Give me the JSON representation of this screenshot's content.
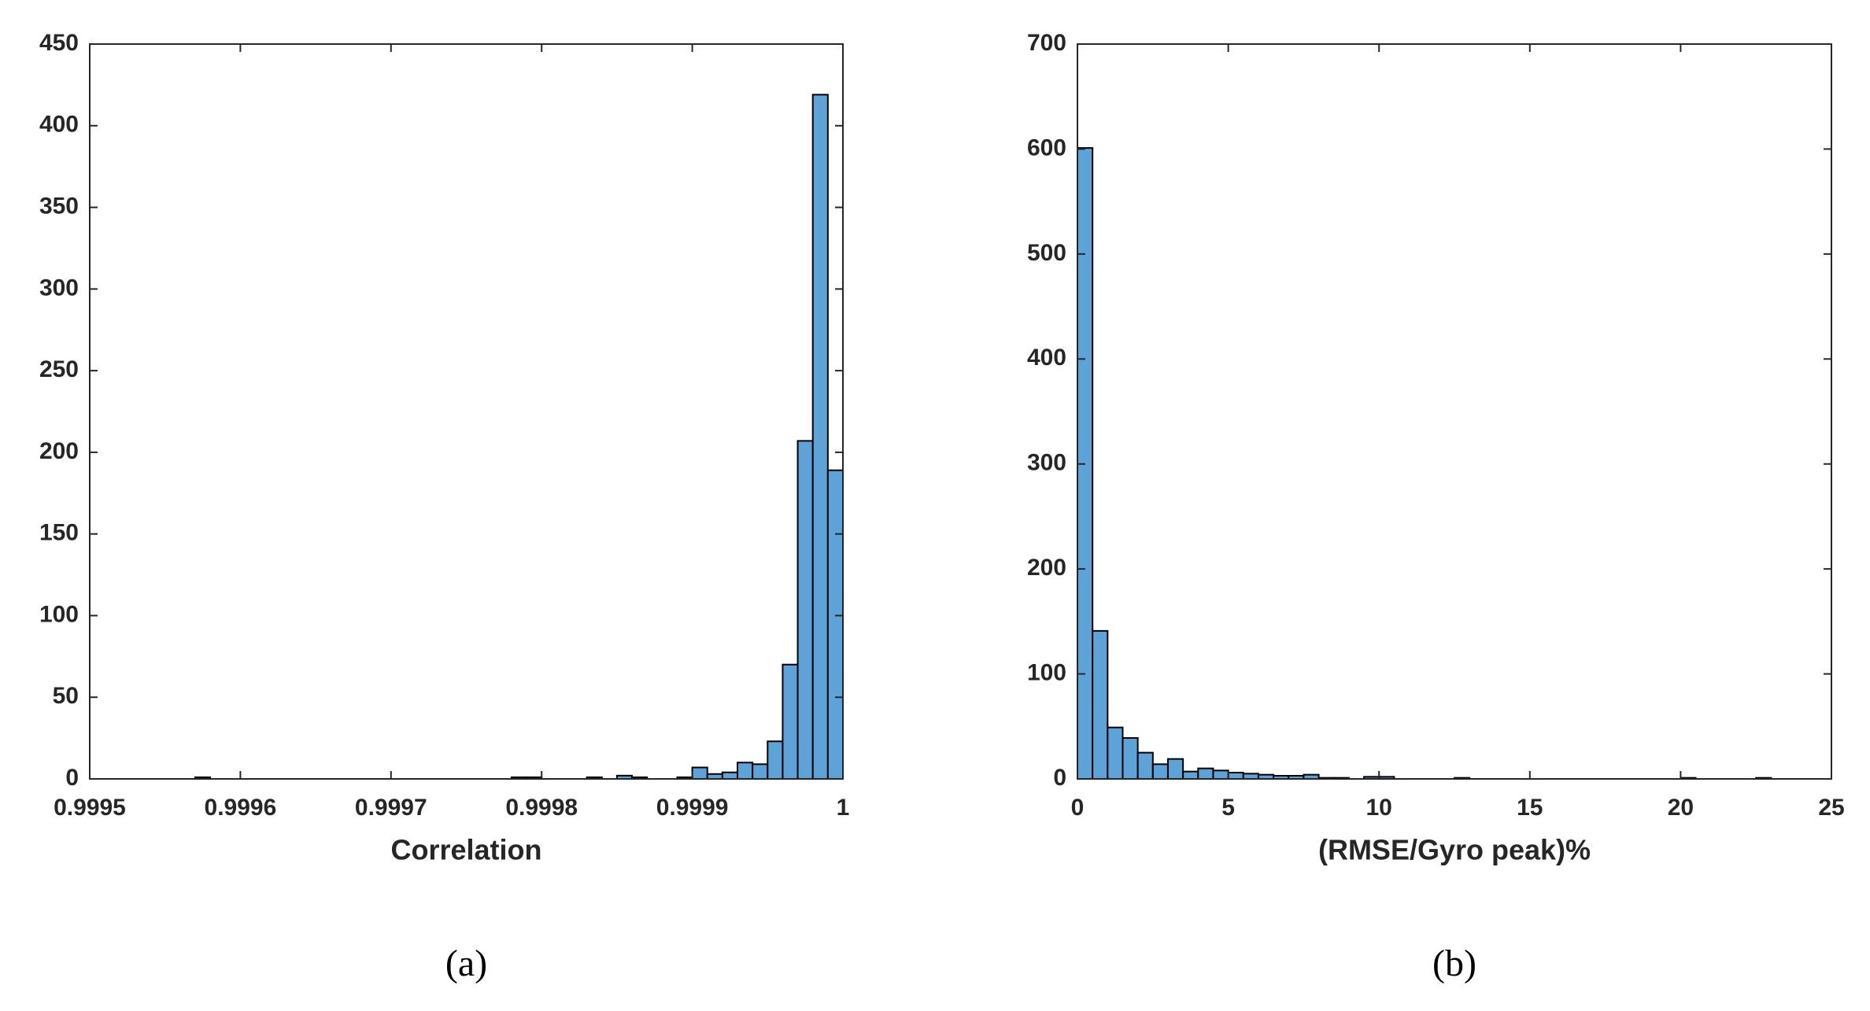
{
  "chart_data": [
    {
      "type": "histogram",
      "x_label": "Correlation",
      "caption": "(a)",
      "color": "#5ea3d8",
      "edgecolor": "#000000",
      "bins": [
        0.9995,
        0.99951,
        0.99952,
        0.99953,
        0.99954,
        0.99955,
        0.99956,
        0.99957,
        0.99958,
        0.99959,
        0.9996,
        0.99961,
        0.99962,
        0.99963,
        0.99964,
        0.99965,
        0.99966,
        0.99967,
        0.99968,
        0.99969,
        0.9997,
        0.99971,
        0.99972,
        0.99973,
        0.99974,
        0.99975,
        0.99976,
        0.99977,
        0.99978,
        0.99979,
        0.9998,
        0.99981,
        0.99982,
        0.99983,
        0.99984,
        0.99985,
        0.99986,
        0.99987,
        0.99988,
        0.99989,
        0.9999,
        0.99991,
        0.99992,
        0.99993,
        0.99994,
        0.99995,
        0.99996,
        0.99997,
        0.99998,
        0.99999,
        1
      ],
      "values": [
        0,
        0,
        0,
        0,
        0,
        0,
        0,
        1,
        0,
        0,
        0,
        0,
        0,
        0,
        0,
        0,
        0,
        0,
        0,
        0,
        0,
        0,
        0,
        0,
        0,
        0,
        0,
        0,
        1,
        1,
        0,
        0,
        0,
        1,
        0,
        2,
        1,
        0,
        0,
        1,
        7,
        3,
        4,
        10,
        9,
        23,
        70,
        207,
        419,
        189
      ],
      "xlim": [
        0.9995,
        1
      ],
      "xticks": [
        0.9995,
        0.9996,
        0.9997,
        0.9998,
        0.9999,
        1
      ],
      "ylim": [
        0,
        450
      ],
      "yticks": [
        0,
        50,
        100,
        150,
        200,
        250,
        300,
        350,
        400,
        450
      ]
    },
    {
      "type": "histogram",
      "x_label": "(RMSE/Gyro peak)%",
      "caption": "(b)",
      "color": "#5ea3d8",
      "edgecolor": "#000000",
      "bins": [
        0,
        0.5,
        1,
        1.5,
        2,
        2.5,
        3,
        3.5,
        4,
        4.5,
        5,
        5.5,
        6,
        6.5,
        7,
        7.5,
        8,
        8.5,
        9,
        9.5,
        10,
        10.5,
        11,
        11.5,
        12,
        12.5,
        13,
        13.5,
        14,
        14.5,
        15,
        15.5,
        16,
        16.5,
        17,
        17.5,
        18,
        18.5,
        19,
        19.5,
        20,
        20.5,
        21,
        21.5,
        22,
        22.5,
        23,
        23.5,
        24,
        24.5,
        25
      ],
      "values": [
        601,
        141,
        49,
        39,
        25,
        14,
        19,
        7,
        10,
        8,
        6,
        5,
        4,
        3,
        3,
        4,
        1,
        1,
        0,
        2,
        2,
        0,
        0,
        0,
        0,
        1,
        0,
        0,
        0,
        0,
        0,
        0,
        0,
        0,
        0,
        0,
        0,
        0,
        0,
        0,
        1,
        0,
        0,
        0,
        0,
        1,
        0,
        0,
        0,
        0
      ],
      "xlim": [
        0,
        25
      ],
      "xticks": [
        0,
        5,
        10,
        15,
        20,
        25
      ],
      "ylim": [
        0,
        700
      ],
      "yticks": [
        0,
        100,
        200,
        300,
        400,
        500,
        600,
        700
      ]
    }
  ]
}
